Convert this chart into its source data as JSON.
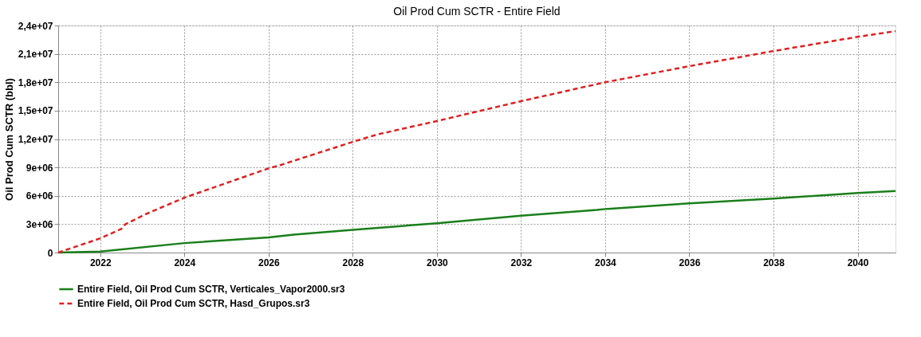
{
  "chart_data": {
    "type": "line",
    "title": "Oil Prod Cum SCTR - Entire  Field",
    "ylabel": "Oil Prod Cum SCTR (bbl)",
    "xlim": [
      2021.0,
      2040.9
    ],
    "xticks": [
      2022,
      2024,
      2026,
      2028,
      2030,
      2032,
      2034,
      2036,
      2038,
      2040
    ],
    "ylim": [
      0,
      24000000
    ],
    "yticks": [
      0,
      {
        "value": 3000000,
        "label": "3e+06"
      },
      {
        "value": 6000000,
        "label": "6e+06"
      },
      {
        "value": 9000000,
        "label": "9e+06"
      },
      {
        "value": 12000000,
        "label": "1,2e+07"
      },
      {
        "value": 15000000,
        "label": "1,5e+07"
      },
      {
        "value": 18000000,
        "label": "1,8e+07"
      },
      {
        "value": 21000000,
        "label": "2,1e+07"
      },
      {
        "value": 24000000,
        "label": "2,4e+07"
      }
    ],
    "grid": true,
    "legend": "bottom",
    "marker": "none",
    "series": [
      {
        "name": "Entire  Field, Oil Prod Cum SCTR, Verticales_Vapor2000.sr3",
        "color": "#1a7f1a",
        "line_style": "solid",
        "x": [
          2021.0,
          2022,
          2024,
          2026,
          2026.6,
          2028,
          2030,
          2032,
          2033.8,
          2034,
          2036,
          2038,
          2040,
          2040.9
        ],
        "values": [
          0,
          100000,
          1000000,
          1600000,
          1900000,
          2400000,
          3100000,
          3900000,
          4500000,
          4600000,
          5200000,
          5700000,
          6300000,
          6500000
        ]
      },
      {
        "name": "Entire  Field, Oil Prod Cum SCTR, Hasd_Grupos.sr3",
        "color": "#e02020",
        "line_style": "dashed",
        "x": [
          2021.0,
          2022,
          2022.5,
          2022.6,
          2023.1,
          2024,
          2026,
          2026.25,
          2028,
          2028.6,
          2030,
          2032,
          2033.8,
          2034,
          2036,
          2038,
          2040,
          2040.9
        ],
        "values": [
          0,
          1500000,
          2500000,
          3000000,
          4100000,
          5800000,
          8900000,
          9200000,
          11700000,
          12500000,
          13900000,
          16000000,
          17800000,
          18000000,
          19700000,
          21300000,
          22800000,
          23400000
        ]
      }
    ]
  }
}
